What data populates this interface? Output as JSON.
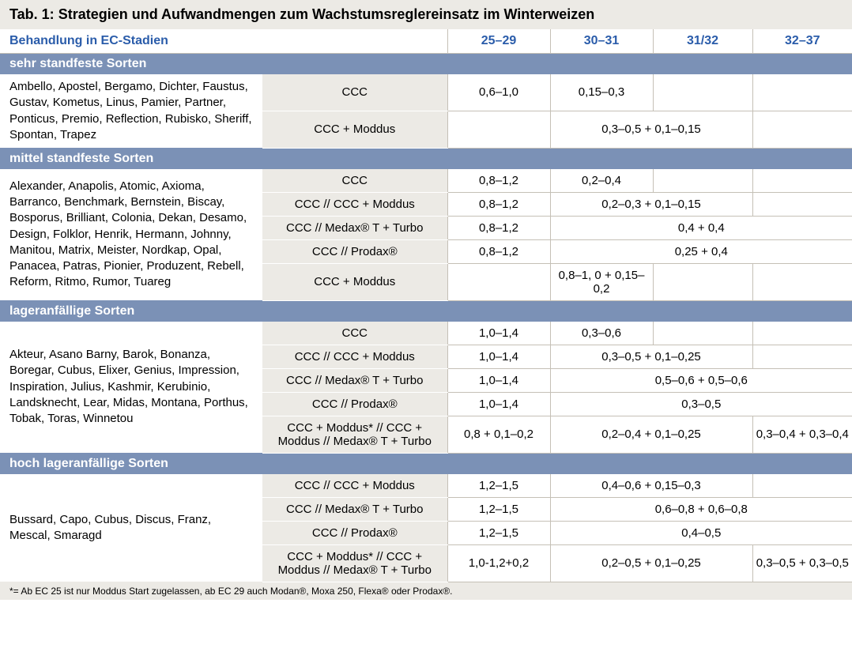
{
  "colors": {
    "section_bg": "#7b91b6",
    "panel_bg": "#eceae5",
    "header_text": "#2a5caa",
    "grid": "#c5c0b6",
    "text": "#000000",
    "bg": "#ffffff"
  },
  "title_prefix": "Tab. 1: ",
  "title": "Strategien und Aufwandmengen zum Wachstumsreglereinsatz im Winterweizen",
  "header": {
    "left": "Behandlung in EC-Stadien",
    "cols": [
      "25–29",
      "30–31",
      "31/32",
      "32–37"
    ]
  },
  "sections": [
    {
      "name": "sehr standfeste Sorten",
      "desc": "Ambello, Apostel, Bergamo, Dichter, Faustus, Gustav, Kometus, Linus, Pamier, Partner, Ponticus, Premio, Reflection, Rubisko, Sheriff, Spontan, Trapez",
      "rows": [
        {
          "product": "CCC",
          "cells": [
            {
              "v": "0,6–1,0"
            },
            {
              "v": "0,15–0,3"
            },
            {
              "v": ""
            },
            {
              "v": ""
            }
          ]
        },
        {
          "product": "CCC + Moddus",
          "cells": [
            {
              "v": ""
            },
            {
              "v": "0,3–0,5 + 0,1–0,15",
              "span": 2
            },
            {
              "v": ""
            }
          ]
        }
      ]
    },
    {
      "name": "mittel standfeste Sorten",
      "desc": "Alexander, Anapolis, Atomic, Axioma, Barranco, Benchmark, Bernstein, Biscay, Bosporus, Brilliant, Colonia, Dekan, Desamo, Design, Folklor, Henrik, Hermann, Johnny, Manitou, Matrix, Meister, Nordkap, Opal, Panacea, Patras, Pionier, Produzent, Rebell, Reform, Ritmo, Rumor, Tuareg",
      "rows": [
        {
          "product": "CCC",
          "cells": [
            {
              "v": "0,8–1,2"
            },
            {
              "v": "0,2–0,4"
            },
            {
              "v": ""
            },
            {
              "v": ""
            }
          ]
        },
        {
          "product": "CCC // CCC + Moddus",
          "cells": [
            {
              "v": "0,8–1,2"
            },
            {
              "v": "0,2–0,3 + 0,1–0,15",
              "span": 2
            },
            {
              "v": ""
            }
          ]
        },
        {
          "product": "CCC // Medax® T + Turbo",
          "cells": [
            {
              "v": "0,8–1,2"
            },
            {
              "v": "0,4 + 0,4",
              "span": 3
            }
          ]
        },
        {
          "product": "CCC // Prodax®",
          "cells": [
            {
              "v": "0,8–1,2"
            },
            {
              "v": "0,25 + 0,4",
              "span": 3
            }
          ]
        },
        {
          "product": "CCC + Moddus",
          "cells": [
            {
              "v": ""
            },
            {
              "v": "0,8–1, 0 + 0,15–0,2"
            },
            {
              "v": ""
            },
            {
              "v": ""
            }
          ]
        }
      ]
    },
    {
      "name": "lageranfällige Sorten",
      "desc": "Akteur, Asano Barny, Barok, Bonanza, Boregar, Cubus, Elixer, Genius, Impression, Inspiration, Julius, Kashmir, Kerubinio, Landsknecht, Lear, Midas, Montana, Porthus, Tobak, Toras, Winnetou",
      "rows": [
        {
          "product": "CCC",
          "cells": [
            {
              "v": "1,0–1,4"
            },
            {
              "v": "0,3–0,6"
            },
            {
              "v": ""
            },
            {
              "v": ""
            }
          ]
        },
        {
          "product": "CCC // CCC + Moddus",
          "cells": [
            {
              "v": "1,0–1,4"
            },
            {
              "v": "0,3–0,5 + 0,1–0,25",
              "span": 2
            },
            {
              "v": ""
            }
          ]
        },
        {
          "product": "CCC // Medax® T + Turbo",
          "cells": [
            {
              "v": "1,0–1,4"
            },
            {
              "v": "0,5–0,6 + 0,5–0,6",
              "span": 3
            }
          ]
        },
        {
          "product": "CCC // Prodax®",
          "cells": [
            {
              "v": "1,0–1,4"
            },
            {
              "v": "0,3–0,5",
              "span": 3
            }
          ]
        },
        {
          "product": "CCC + Moddus* // CCC + Moddus // Medax® T + Turbo",
          "cells": [
            {
              "v": "0,8 + 0,1–0,2"
            },
            {
              "v": "0,2–0,4 + 0,1–0,25",
              "span": 2
            },
            {
              "v": "0,3–0,4 + 0,3–0,4"
            }
          ]
        }
      ]
    },
    {
      "name": "hoch lageranfällige Sorten",
      "desc": "Bussard, Capo, Cubus, Discus, Franz, Mescal, Smaragd",
      "rows": [
        {
          "product": "CCC // CCC + Moddus",
          "cells": [
            {
              "v": "1,2–1,5"
            },
            {
              "v": "0,4–0,6 + 0,15–0,3",
              "span": 2
            },
            {
              "v": ""
            }
          ]
        },
        {
          "product": "CCC // Medax® T + Turbo",
          "cells": [
            {
              "v": "1,2–1,5"
            },
            {
              "v": "0,6–0,8 + 0,6–0,8",
              "span": 3
            }
          ]
        },
        {
          "product": "CCC // Prodax®",
          "cells": [
            {
              "v": "1,2–1,5"
            },
            {
              "v": "0,4–0,5",
              "span": 3
            }
          ]
        },
        {
          "product": "CCC + Moddus* // CCC + Moddus // Medax® T + Turbo",
          "cells": [
            {
              "v": "1,0-1,2+0,2"
            },
            {
              "v": "0,2–0,5 + 0,1–0,25",
              "span": 2
            },
            {
              "v": "0,3–0,5 + 0,3–0,5"
            }
          ]
        }
      ]
    }
  ],
  "footnote": "*= Ab EC 25 ist nur Moddus Start zugelassen, ab EC 29 auch Modan®, Moxa 250, Flexa® oder Prodax®."
}
